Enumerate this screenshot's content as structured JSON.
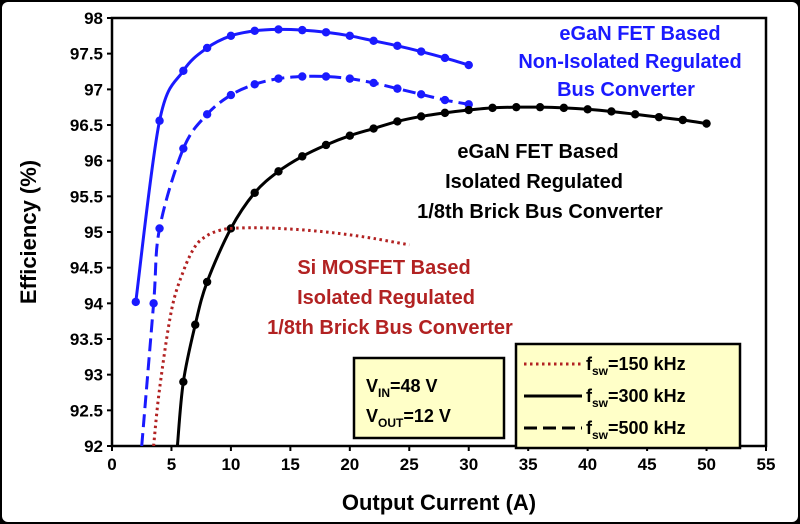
{
  "chart_data": {
    "type": "line",
    "title": "",
    "xlabel": "Output Current (A)",
    "ylabel": "Efficiency  (%)",
    "xlim": [
      0,
      55
    ],
    "ylim": [
      92,
      98
    ],
    "xticks": [
      "0",
      "5",
      "10",
      "15",
      "20",
      "25",
      "30",
      "35",
      "40",
      "45",
      "50",
      "55"
    ],
    "yticks": [
      "92",
      "92.5",
      "93",
      "93.5",
      "94",
      "94.5",
      "95",
      "95.5",
      "96",
      "96.5",
      "97",
      "97.5",
      "98"
    ],
    "grid": false,
    "colors": {
      "egan_noniso": "#1a1aff",
      "egan_iso": "#000000",
      "si": "#b22222"
    },
    "series": [
      {
        "id": "egan_noniso_300",
        "color": "#1a1aff",
        "dash": "solid",
        "markers": true,
        "x": [
          2,
          4,
          6,
          8,
          10,
          12,
          14,
          16,
          18,
          20,
          22,
          24,
          26,
          28,
          30
        ],
        "y": [
          94.02,
          96.56,
          97.26,
          97.58,
          97.75,
          97.82,
          97.84,
          97.83,
          97.8,
          97.75,
          97.68,
          97.61,
          97.53,
          97.44,
          97.34
        ]
      },
      {
        "id": "egan_noniso_500",
        "color": "#1a1aff",
        "dash": "dashed",
        "markers": true,
        "x": [
          2.5,
          3.5,
          4,
          6,
          8,
          10,
          12,
          14,
          16,
          18,
          20,
          22,
          24,
          26,
          28,
          30
        ],
        "y": [
          92.0,
          94.0,
          95.05,
          96.17,
          96.65,
          96.92,
          97.07,
          97.15,
          97.18,
          97.18,
          97.15,
          97.09,
          97.01,
          96.93,
          96.85,
          96.79
        ]
      },
      {
        "id": "egan_iso_300",
        "color": "#000000",
        "dash": "solid",
        "markers": true,
        "x": [
          5.5,
          6,
          7,
          8,
          10,
          12,
          14,
          16,
          18,
          20,
          22,
          24,
          26,
          28,
          30,
          32,
          34,
          36,
          38,
          40,
          42,
          44,
          46,
          48,
          50
        ],
        "y": [
          92.0,
          92.9,
          93.7,
          94.3,
          95.05,
          95.55,
          95.85,
          96.06,
          96.22,
          96.35,
          96.45,
          96.55,
          96.62,
          96.67,
          96.71,
          96.74,
          96.75,
          96.75,
          96.74,
          96.72,
          96.69,
          96.65,
          96.61,
          96.57,
          96.52
        ]
      },
      {
        "id": "si_150",
        "color": "#b22222",
        "dash": "dotted",
        "markers": false,
        "x": [
          3.5,
          4,
          5,
          6,
          7,
          8,
          9,
          10,
          12,
          14,
          16,
          18,
          20,
          22,
          24,
          25
        ],
        "y": [
          92.0,
          92.8,
          93.9,
          94.45,
          94.8,
          94.95,
          95.02,
          95.05,
          95.06,
          95.05,
          95.03,
          95.0,
          94.96,
          94.91,
          94.85,
          94.82
        ]
      }
    ],
    "annotations": {
      "egan_noniso": [
        "eGaN FET Based",
        "Non-Isolated Regulated",
        "Bus Converter"
      ],
      "egan_iso": [
        "eGaN FET Based",
        "Isolated  Regulated",
        "1/8th Brick Bus Converter"
      ],
      "si": [
        "Si MOSFET Based",
        "Isolated Regulated",
        "1/8th Brick Bus Converter"
      ]
    },
    "conditions": {
      "vin_main": "V",
      "vin_sub": "IN",
      "vin_value": "=48 V",
      "vout_main": "V",
      "vout_sub": "OUT",
      "vout_value": "=12 V"
    },
    "legend": {
      "position": "bottom-right",
      "entries": [
        {
          "main": "f",
          "sub": "sw",
          "value": "=150 kHz",
          "dash": "dotted"
        },
        {
          "main": "f",
          "sub": "sw",
          "value": "=300 kHz",
          "dash": "solid"
        },
        {
          "main": "f",
          "sub": "sw",
          "value": "=500 kHz",
          "dash": "dashed"
        }
      ]
    }
  }
}
